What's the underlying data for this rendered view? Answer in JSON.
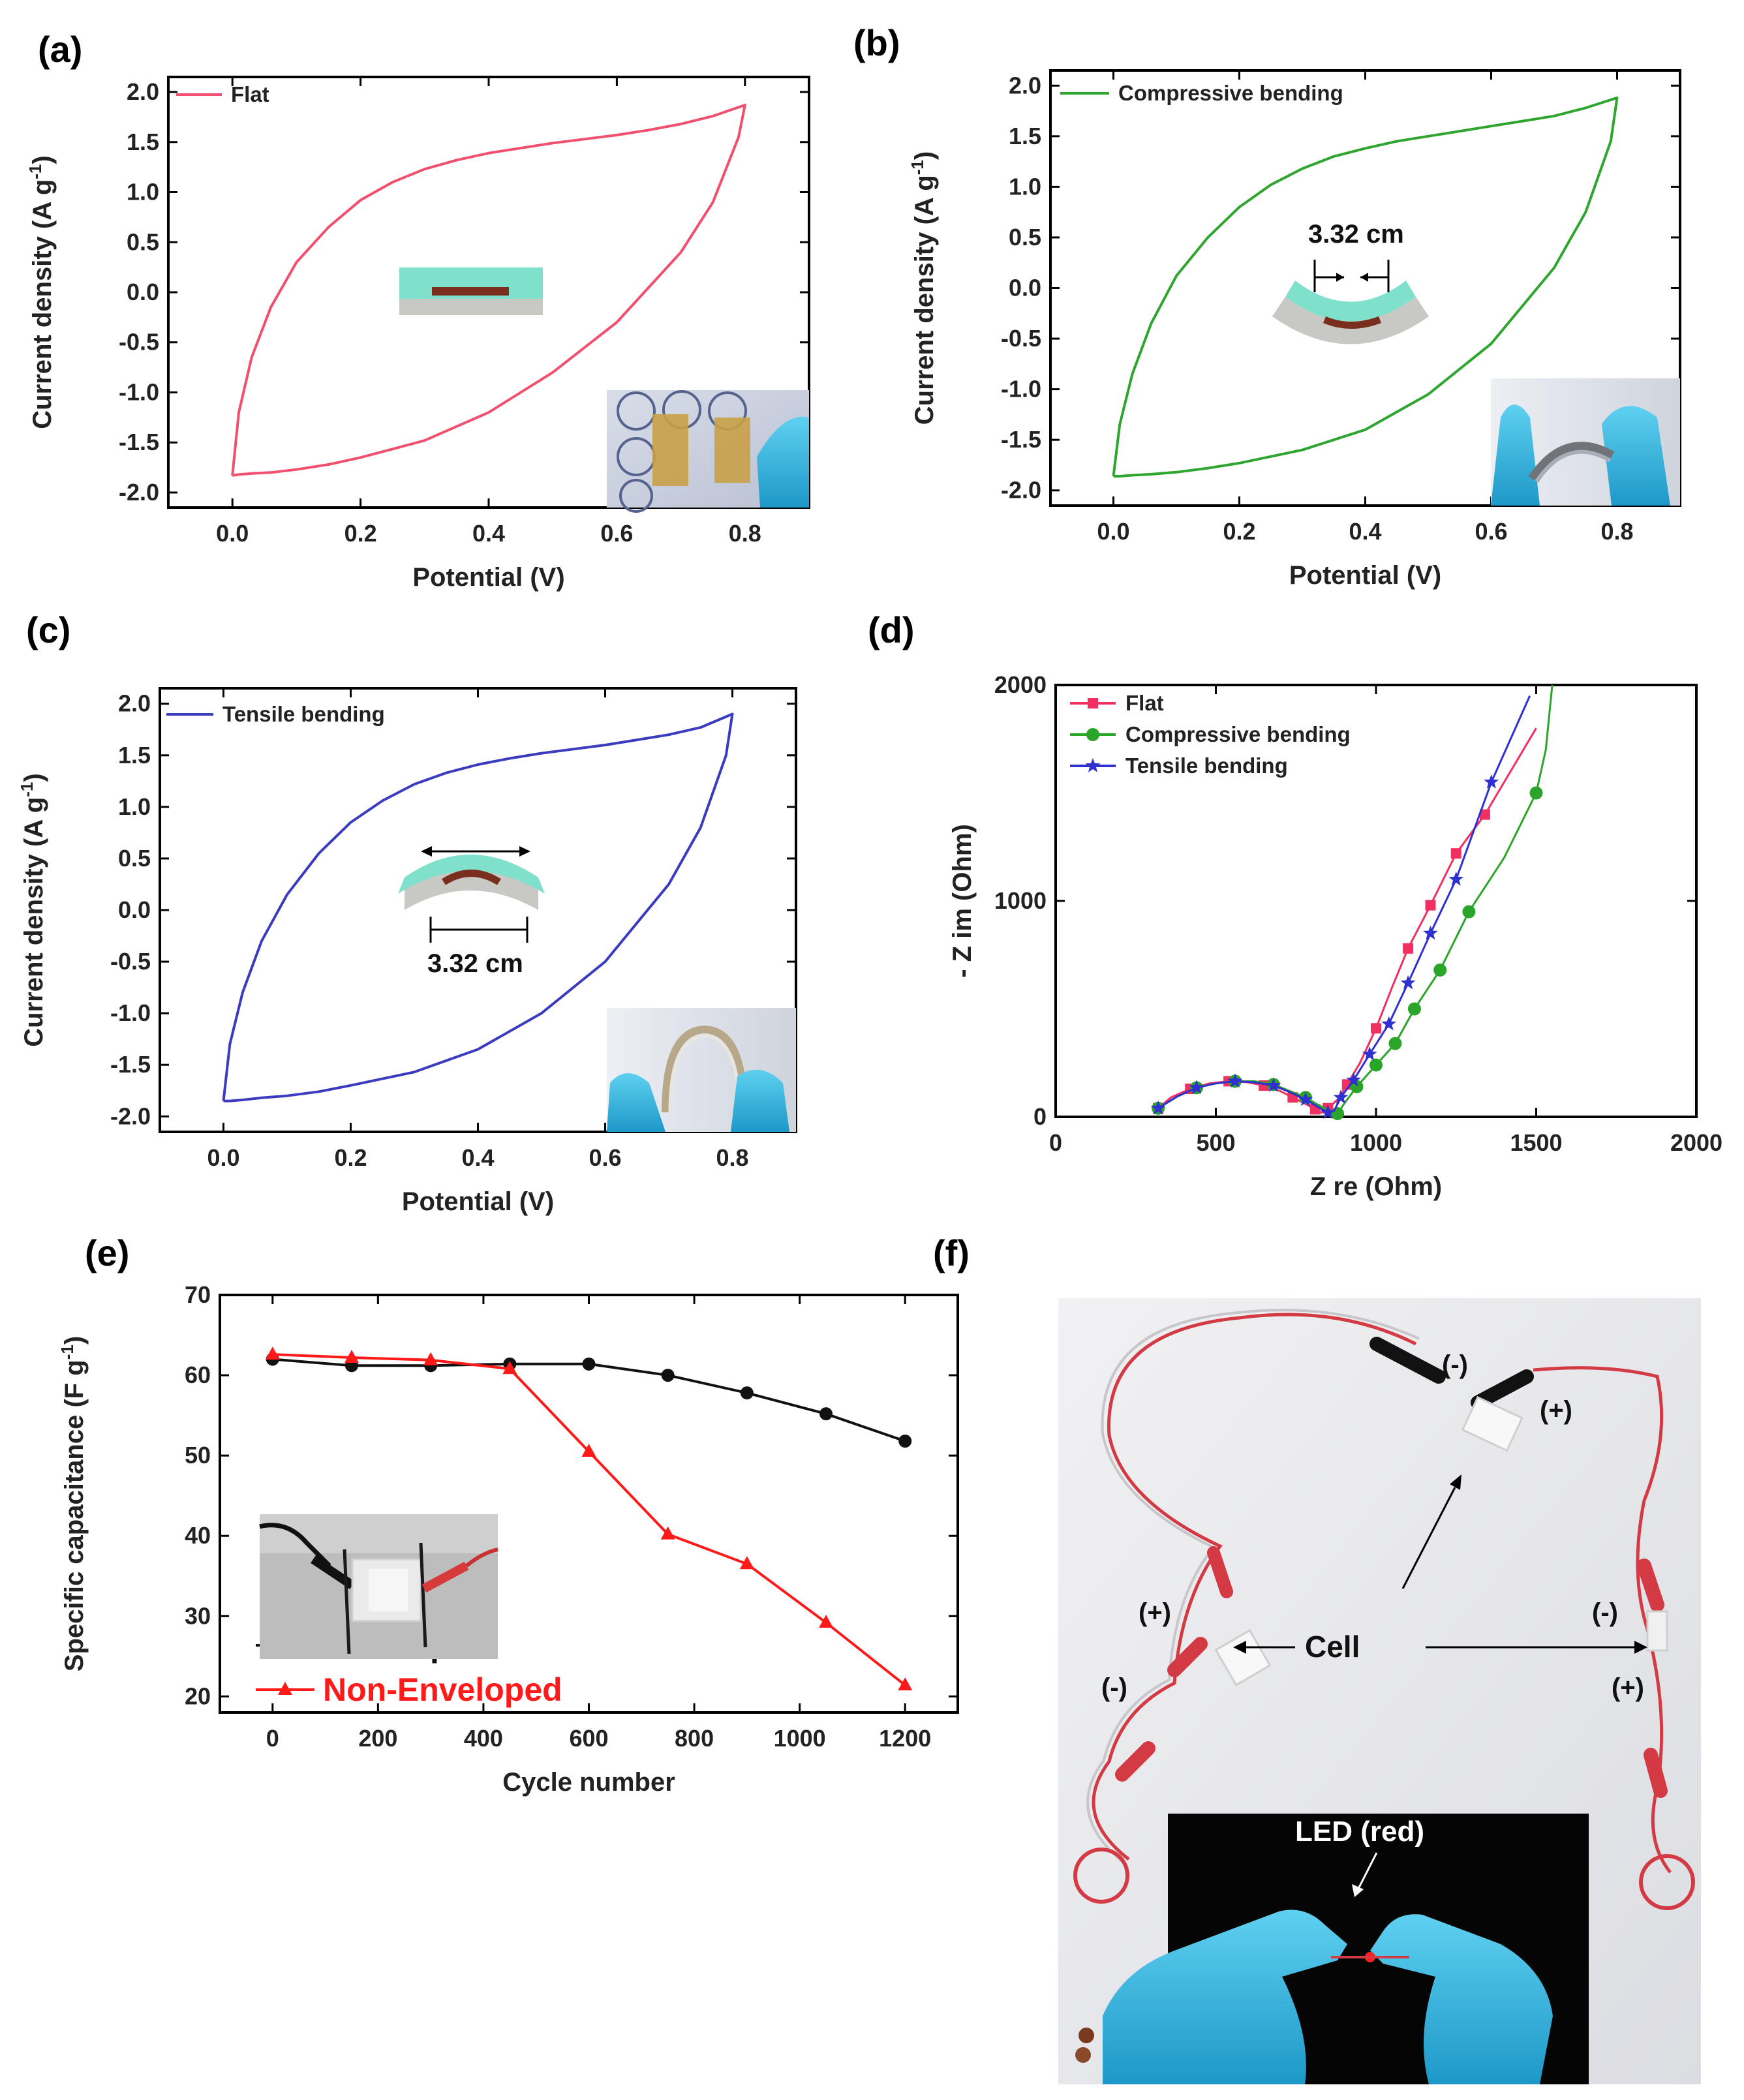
{
  "panel_labels": [
    "(a)",
    "(b)",
    "(c)",
    "(d)",
    "(e)",
    "(f)"
  ],
  "colors": {
    "flat": "#f0506e",
    "compressive": "#2ea52e",
    "tensile": "#3b3bc0",
    "eis_flat": "#f03060",
    "eis_compressive": "#2aa52a",
    "eis_tensile": "#3030d0",
    "enveloped": "#111111",
    "non_enveloped": "#ff1a1a"
  },
  "icons": {
    "a_inset": "photo-electrodes-with-gloved-hand",
    "b_inset": "photo-compressive-bent-device",
    "c_inset": "photo-tensile-bent-device",
    "e_inset": "photo-enveloped-cell-with-clips",
    "f": "photo-led-circuit-with-cells"
  },
  "annotations": {
    "b_width": "3.32 cm",
    "c_width": "3.32 cm",
    "f_cell": "Cell",
    "f_led": "LED (red)",
    "f_polarity": [
      "(-)",
      "(+)",
      "(+)",
      "(-)",
      "(-)",
      "(+)"
    ]
  },
  "chart_data": [
    {
      "id": "a",
      "type": "line",
      "xlabel": "Potential (V)",
      "ylabel": "Current density (A g⁻¹)",
      "xlim": [
        -0.1,
        0.9
      ],
      "ylim": [
        -2.15,
        2.15
      ],
      "xticks": [
        "0.0",
        "0.2",
        "0.4",
        "0.6",
        "0.8"
      ],
      "yticks": [
        "-2.0",
        "-1.5",
        "-1.0",
        "-0.5",
        "0.0",
        "0.5",
        "1.0",
        "1.5",
        "2.0"
      ],
      "legend_position": "top-left",
      "series": [
        {
          "name": "Flat",
          "x": [
            0,
            0.01,
            0.03,
            0.06,
            0.1,
            0.15,
            0.2,
            0.25,
            0.3,
            0.35,
            0.4,
            0.45,
            0.5,
            0.55,
            0.6,
            0.65,
            0.7,
            0.75,
            0.8,
            0.79,
            0.75,
            0.7,
            0.6,
            0.5,
            0.4,
            0.3,
            0.2,
            0.15,
            0.1,
            0.06,
            0.03,
            0.01,
            0
          ],
          "y": [
            -1.83,
            -1.2,
            -0.65,
            -0.15,
            0.3,
            0.65,
            0.92,
            1.1,
            1.23,
            1.32,
            1.39,
            1.44,
            1.49,
            1.53,
            1.57,
            1.62,
            1.68,
            1.76,
            1.87,
            1.55,
            0.9,
            0.4,
            -0.3,
            -0.8,
            -1.2,
            -1.48,
            -1.65,
            -1.72,
            -1.77,
            -1.8,
            -1.81,
            -1.82,
            -1.83
          ]
        }
      ]
    },
    {
      "id": "b",
      "type": "line",
      "xlabel": "Potential (V)",
      "ylabel": "Current density (A g⁻¹)",
      "xlim": [
        -0.1,
        0.9
      ],
      "ylim": [
        -2.15,
        2.15
      ],
      "xticks": [
        "0.0",
        "0.2",
        "0.4",
        "0.6",
        "0.8"
      ],
      "yticks": [
        "-2.0",
        "-1.5",
        "-1.0",
        "-0.5",
        "0.0",
        "0.5",
        "1.0",
        "1.5",
        "2.0"
      ],
      "legend_position": "top-left",
      "series": [
        {
          "name": "Compressive bending",
          "x": [
            0,
            0.01,
            0.03,
            0.06,
            0.1,
            0.15,
            0.2,
            0.25,
            0.3,
            0.35,
            0.4,
            0.45,
            0.5,
            0.55,
            0.6,
            0.65,
            0.7,
            0.75,
            0.8,
            0.79,
            0.75,
            0.7,
            0.6,
            0.5,
            0.4,
            0.3,
            0.2,
            0.15,
            0.1,
            0.06,
            0.03,
            0.01,
            0
          ],
          "y": [
            -1.86,
            -1.35,
            -0.85,
            -0.35,
            0.12,
            0.5,
            0.8,
            1.02,
            1.18,
            1.3,
            1.38,
            1.45,
            1.5,
            1.55,
            1.6,
            1.65,
            1.7,
            1.78,
            1.88,
            1.45,
            0.75,
            0.2,
            -0.55,
            -1.05,
            -1.4,
            -1.6,
            -1.73,
            -1.78,
            -1.82,
            -1.84,
            -1.85,
            -1.86,
            -1.86
          ]
        }
      ]
    },
    {
      "id": "c",
      "type": "line",
      "xlabel": "Potential (V)",
      "ylabel": "Current density (A g⁻¹)",
      "xlim": [
        -0.1,
        0.9
      ],
      "ylim": [
        -2.15,
        2.15
      ],
      "xticks": [
        "0.0",
        "0.2",
        "0.4",
        "0.6",
        "0.8"
      ],
      "yticks": [
        "-2.0",
        "-1.5",
        "-1.0",
        "-0.5",
        "0.0",
        "0.5",
        "1.0",
        "1.5",
        "2.0"
      ],
      "legend_position": "top-left",
      "series": [
        {
          "name": "Tensile bending",
          "x": [
            0,
            0.01,
            0.03,
            0.06,
            0.1,
            0.15,
            0.2,
            0.25,
            0.3,
            0.35,
            0.4,
            0.45,
            0.5,
            0.55,
            0.6,
            0.65,
            0.7,
            0.75,
            0.8,
            0.79,
            0.75,
            0.7,
            0.6,
            0.5,
            0.4,
            0.3,
            0.2,
            0.15,
            0.1,
            0.06,
            0.03,
            0.01,
            0
          ],
          "y": [
            -1.85,
            -1.3,
            -0.8,
            -0.3,
            0.15,
            0.55,
            0.85,
            1.06,
            1.22,
            1.33,
            1.41,
            1.47,
            1.52,
            1.56,
            1.6,
            1.65,
            1.7,
            1.77,
            1.9,
            1.5,
            0.8,
            0.25,
            -0.5,
            -1.0,
            -1.35,
            -1.57,
            -1.7,
            -1.76,
            -1.8,
            -1.82,
            -1.84,
            -1.85,
            -1.85
          ]
        }
      ]
    },
    {
      "id": "d",
      "type": "scatter",
      "xlabel": "Z re (Ohm)",
      "ylabel": "- Z im (Ohm)",
      "xlim": [
        0,
        2000
      ],
      "ylim": [
        0,
        2000
      ],
      "xticks": [
        "0",
        "500",
        "1000",
        "1500",
        "2000"
      ],
      "yticks": [
        "0",
        "1000",
        "2000"
      ],
      "legend_position": "top-left",
      "series": [
        {
          "name": "Flat",
          "marker": "square",
          "x": [
            320,
            360,
            420,
            480,
            540,
            600,
            650,
            700,
            740,
            780,
            810,
            830,
            850,
            880,
            910,
            950,
            1000,
            1050,
            1100,
            1170,
            1250,
            1340,
            1500
          ],
          "y": [
            40,
            90,
            130,
            155,
            165,
            160,
            145,
            120,
            90,
            60,
            35,
            20,
            40,
            80,
            150,
            250,
            410,
            600,
            780,
            980,
            1220,
            1400,
            1800
          ],
          "markers_x": [
            320,
            420,
            540,
            650,
            740,
            810,
            850,
            910,
            1000,
            1100,
            1170,
            1250,
            1340
          ],
          "markers_y": [
            40,
            130,
            165,
            145,
            90,
            35,
            40,
            150,
            410,
            780,
            980,
            1220,
            1400
          ]
        },
        {
          "name": "Compressive bending",
          "marker": "circle",
          "x": [
            320,
            380,
            440,
            500,
            560,
            620,
            680,
            730,
            780,
            820,
            860,
            880,
            900,
            940,
            1000,
            1060,
            1120,
            1200,
            1290,
            1400,
            1500,
            1530,
            1550
          ],
          "y": [
            40,
            95,
            135,
            155,
            165,
            165,
            150,
            120,
            90,
            55,
            25,
            15,
            60,
            140,
            240,
            340,
            500,
            680,
            950,
            1200,
            1500,
            1700,
            2000
          ],
          "markers_x": [
            320,
            440,
            560,
            680,
            780,
            880,
            940,
            1000,
            1060,
            1120,
            1200,
            1290,
            1500
          ],
          "markers_y": [
            40,
            135,
            165,
            150,
            90,
            15,
            140,
            240,
            340,
            500,
            680,
            950,
            1500
          ]
        },
        {
          "name": "Tensile bending",
          "marker": "star",
          "x": [
            320,
            380,
            440,
            500,
            560,
            620,
            680,
            730,
            780,
            820,
            850,
            870,
            890,
            930,
            980,
            1040,
            1100,
            1170,
            1250,
            1360,
            1480
          ],
          "y": [
            40,
            95,
            135,
            155,
            165,
            160,
            145,
            115,
            80,
            45,
            20,
            30,
            90,
            170,
            290,
            430,
            620,
            850,
            1100,
            1550,
            1950
          ],
          "markers_x": [
            320,
            440,
            560,
            680,
            780,
            850,
            890,
            930,
            980,
            1040,
            1100,
            1170,
            1250,
            1360
          ],
          "markers_y": [
            40,
            135,
            165,
            145,
            80,
            20,
            90,
            170,
            290,
            430,
            620,
            850,
            1100,
            1550
          ]
        }
      ]
    },
    {
      "id": "e",
      "type": "line",
      "xlabel": "Cycle number",
      "ylabel": "Specific capacitance (F g⁻¹)",
      "xlim": [
        -100,
        1300
      ],
      "ylim": [
        18,
        70
      ],
      "xticks": [
        "0",
        "200",
        "400",
        "600",
        "800",
        "1000",
        "1200"
      ],
      "yticks": [
        "20",
        "30",
        "40",
        "50",
        "60",
        "70"
      ],
      "legend_position": "bottom-left",
      "series": [
        {
          "name": "Enveloped",
          "marker": "circle",
          "x": [
            0,
            150,
            300,
            450,
            600,
            750,
            900,
            1050,
            1200
          ],
          "y": [
            62.0,
            61.2,
            61.2,
            61.4,
            61.4,
            60.0,
            57.8,
            55.2,
            51.8
          ]
        },
        {
          "name": "Non-Enveloped",
          "marker": "triangle",
          "x": [
            0,
            150,
            300,
            450,
            600,
            750,
            900,
            1050,
            1200
          ],
          "y": [
            62.6,
            62.2,
            61.9,
            60.8,
            50.5,
            40.2,
            36.5,
            29.2,
            21.4
          ]
        }
      ]
    }
  ]
}
